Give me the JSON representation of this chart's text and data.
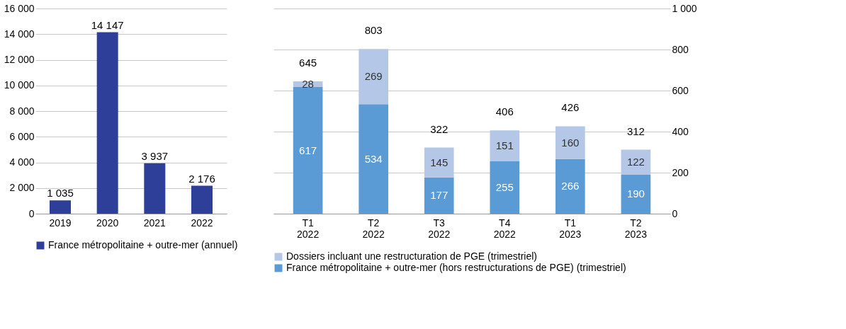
{
  "chart_data": [
    {
      "type": "bar",
      "categories": [
        "2019",
        "2020",
        "2021",
        "2022"
      ],
      "series": [
        {
          "name": "France métropolitaine + outre-mer (annuel)",
          "color": "#2e3f99",
          "values": [
            1035,
            14147,
            3937,
            2176
          ]
        }
      ],
      "value_labels": [
        "1 035",
        "14 147",
        "3 937",
        "2 176"
      ],
      "ylim": [
        0,
        16000
      ],
      "yticks": [
        0,
        {
          "value": 2000,
          "label": "2 000"
        },
        {
          "value": 4000,
          "label": "4 000"
        },
        {
          "value": 6000,
          "label": "6 000"
        },
        {
          "value": 8000,
          "label": "8 000"
        },
        {
          "value": 10000,
          "label": "10 000"
        },
        {
          "value": 12000,
          "label": "12 000"
        },
        {
          "value": 14000,
          "label": "14 000"
        },
        {
          "value": 16000,
          "label": "16 000"
        }
      ],
      "grid": "y",
      "legend": "bottom"
    },
    {
      "type": "bar",
      "stacked": true,
      "categories": [
        "T1 2022",
        "T2 2022",
        "T3 2022",
        "T4 2022",
        "T1 2023",
        "T2 2023"
      ],
      "series": [
        {
          "name": "France métropolitaine + outre-mer (hors restructurations de PGE) (trimestriel)",
          "color": "#5b9bd5",
          "values": [
            617,
            534,
            177,
            255,
            266,
            190
          ]
        },
        {
          "name": "Dossiers incluant une restructuration de PGE (trimestriel)",
          "color": "#b4c7e7",
          "values": [
            28,
            269,
            145,
            151,
            160,
            122
          ]
        }
      ],
      "totals": [
        "645",
        "803",
        "322",
        "406",
        "426",
        "312"
      ],
      "data_labels": true,
      "ylim": [
        0,
        1000
      ],
      "yticks": [
        0,
        200,
        400,
        600,
        800,
        {
          "value": 1000,
          "label": "1 000"
        }
      ],
      "grid": "y",
      "legend": "bottom"
    }
  ]
}
